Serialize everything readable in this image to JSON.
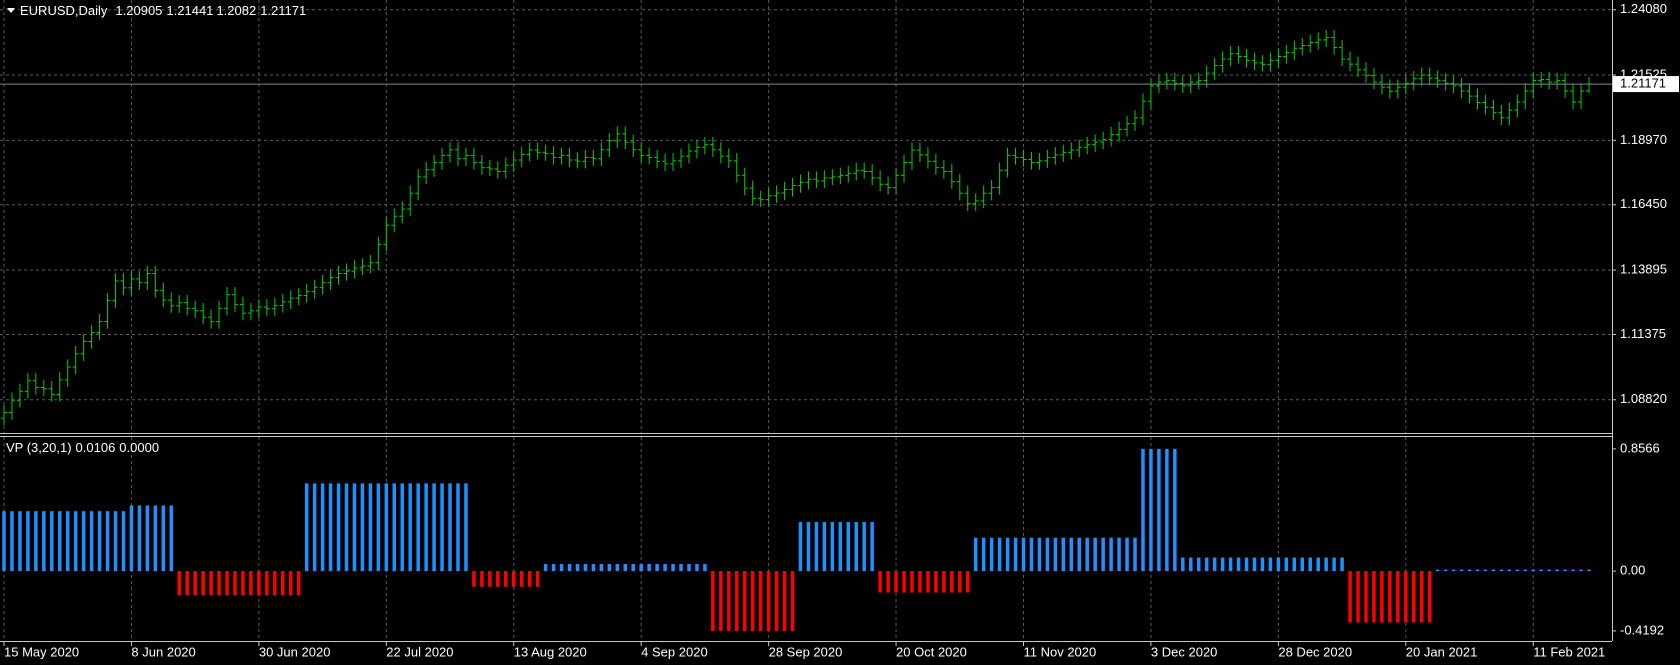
{
  "chart_data": [
    {
      "type": "ohlc",
      "title": "EURUSD,Daily",
      "color": "#00d000",
      "price_line_color": "#778899",
      "grid": true,
      "ylim": [
        1.0752,
        1.2446
      ],
      "yticks": [
        {
          "value": 1.2408,
          "label": "1.24080"
        },
        {
          "value": 1.21525,
          "label": "1.21525"
        },
        {
          "value": 1.1897,
          "label": "1.18970"
        },
        {
          "value": 1.1645,
          "label": "1.16450"
        },
        {
          "value": 1.13895,
          "label": "1.13895"
        },
        {
          "value": 1.11375,
          "label": "1.11375"
        },
        {
          "value": 1.0882,
          "label": "1.08820"
        }
      ],
      "open": [
        1.081,
        1.0832,
        1.088,
        1.0915,
        1.0957,
        1.093,
        1.0925,
        1.0903,
        1.096,
        1.101,
        1.1062,
        1.111,
        1.1145,
        1.1188,
        1.127,
        1.1347,
        1.132,
        1.1355,
        1.134,
        1.1376,
        1.131,
        1.1272,
        1.125,
        1.1262,
        1.124,
        1.123,
        1.1205,
        1.1188,
        1.124,
        1.1293,
        1.1255,
        1.1221,
        1.123,
        1.1245,
        1.1238,
        1.1251,
        1.1265,
        1.128,
        1.129,
        1.1305,
        1.1322,
        1.134,
        1.136,
        1.1376,
        1.1385,
        1.1398,
        1.1405,
        1.1418,
        1.149,
        1.1565,
        1.16,
        1.1628,
        1.169,
        1.1754,
        1.1782,
        1.181,
        1.1838,
        1.186,
        1.1825,
        1.1838,
        1.181,
        1.179,
        1.1785,
        1.1775,
        1.18,
        1.182,
        1.1842,
        1.1859,
        1.185,
        1.1845,
        1.183,
        1.1838,
        1.182,
        1.1815,
        1.183,
        1.1825,
        1.186,
        1.1895,
        1.1922,
        1.189,
        1.186,
        1.1838,
        1.183,
        1.1815,
        1.1805,
        1.1817,
        1.1835,
        1.1855,
        1.187,
        1.188,
        1.186,
        1.1835,
        1.1817,
        1.176,
        1.171,
        1.167,
        1.1665,
        1.168,
        1.1691,
        1.1705,
        1.172,
        1.1733,
        1.1745,
        1.1738,
        1.175,
        1.1754,
        1.176,
        1.1768,
        1.178,
        1.1775,
        1.175,
        1.1725,
        1.1712,
        1.176,
        1.181,
        1.1859,
        1.184,
        1.1815,
        1.179,
        1.1775,
        1.1735,
        1.169,
        1.1649,
        1.166,
        1.169,
        1.1712,
        1.178,
        1.1838,
        1.183,
        1.1822,
        1.181,
        1.1817,
        1.183,
        1.184,
        1.185,
        1.1859,
        1.187,
        1.188,
        1.189,
        1.1901,
        1.192,
        1.194,
        1.1962,
        1.1985,
        1.205,
        1.211,
        1.2125,
        1.2131,
        1.212,
        1.211,
        1.2125,
        1.2131,
        1.216,
        1.219,
        1.2215,
        1.2236,
        1.2225,
        1.221,
        1.22,
        1.2194,
        1.221,
        1.2225,
        1.224,
        1.2257,
        1.2268,
        1.228,
        1.229,
        1.2299,
        1.226,
        1.2215,
        1.2195,
        1.2173,
        1.215,
        1.2125,
        1.2105,
        1.2089,
        1.2105,
        1.212,
        1.2138,
        1.2152,
        1.214,
        1.213,
        1.212,
        1.211,
        1.209,
        1.207,
        1.2045,
        1.2026,
        1.2005,
        1.1985,
        1.2015,
        1.2047,
        1.209,
        1.2131,
        1.2135,
        1.2125,
        1.2131,
        1.209,
        1.2047,
        1.20905
      ],
      "high": [
        1.0862,
        1.091,
        1.0945,
        1.0987,
        1.0987,
        1.096,
        1.0955,
        1.099,
        1.104,
        1.1092,
        1.114,
        1.1175,
        1.1218,
        1.13,
        1.1377,
        1.1377,
        1.1385,
        1.1385,
        1.1406,
        1.1406,
        1.134,
        1.1302,
        1.1292,
        1.1292,
        1.127,
        1.126,
        1.1235,
        1.127,
        1.1323,
        1.1323,
        1.1285,
        1.126,
        1.1275,
        1.1275,
        1.1281,
        1.1295,
        1.131,
        1.132,
        1.1335,
        1.1352,
        1.137,
        1.139,
        1.1406,
        1.1415,
        1.1428,
        1.1435,
        1.1448,
        1.152,
        1.1595,
        1.163,
        1.1658,
        1.172,
        1.1784,
        1.1812,
        1.184,
        1.1868,
        1.189,
        1.189,
        1.1868,
        1.1868,
        1.184,
        1.182,
        1.1815,
        1.183,
        1.185,
        1.1872,
        1.1889,
        1.1889,
        1.188,
        1.1875,
        1.1868,
        1.1868,
        1.185,
        1.186,
        1.186,
        1.189,
        1.1925,
        1.1952,
        1.1952,
        1.192,
        1.189,
        1.1868,
        1.186,
        1.1845,
        1.1847,
        1.1865,
        1.1885,
        1.19,
        1.191,
        1.191,
        1.189,
        1.1865,
        1.1847,
        1.179,
        1.174,
        1.17,
        1.171,
        1.1721,
        1.1735,
        1.175,
        1.1763,
        1.1775,
        1.1775,
        1.178,
        1.1784,
        1.179,
        1.1798,
        1.181,
        1.181,
        1.1805,
        1.178,
        1.1755,
        1.179,
        1.184,
        1.1889,
        1.1889,
        1.187,
        1.1845,
        1.182,
        1.1805,
        1.1765,
        1.172,
        1.169,
        1.172,
        1.1742,
        1.181,
        1.1868,
        1.1868,
        1.186,
        1.1852,
        1.1847,
        1.186,
        1.187,
        1.188,
        1.1889,
        1.19,
        1.191,
        1.192,
        1.1931,
        1.195,
        1.197,
        1.1992,
        1.2015,
        1.208,
        1.214,
        1.2155,
        1.2161,
        1.2161,
        1.215,
        1.2155,
        1.2161,
        1.219,
        1.222,
        1.2245,
        1.2266,
        1.2266,
        1.2255,
        1.224,
        1.223,
        1.224,
        1.2255,
        1.227,
        1.2287,
        1.2298,
        1.231,
        1.232,
        1.2329,
        1.2329,
        1.229,
        1.2245,
        1.2225,
        1.2203,
        1.218,
        1.2155,
        1.2135,
        1.2135,
        1.215,
        1.2168,
        1.2182,
        1.2182,
        1.217,
        1.216,
        1.215,
        1.214,
        1.212,
        1.21,
        1.2075,
        1.2056,
        1.2035,
        1.2045,
        1.2077,
        1.212,
        1.2161,
        1.2165,
        1.2165,
        1.2161,
        1.2161,
        1.212,
        1.212,
        1.21441
      ],
      "low": [
        1.0782,
        1.0804,
        1.0852,
        1.0887,
        1.0902,
        1.0897,
        1.0875,
        1.0875,
        1.0932,
        1.0982,
        1.1034,
        1.1082,
        1.1117,
        1.116,
        1.1242,
        1.1292,
        1.1292,
        1.1312,
        1.1312,
        1.1282,
        1.1244,
        1.1222,
        1.1222,
        1.1212,
        1.1202,
        1.1177,
        1.116,
        1.116,
        1.1212,
        1.1227,
        1.1193,
        1.1193,
        1.1202,
        1.121,
        1.121,
        1.1223,
        1.1237,
        1.1252,
        1.1262,
        1.1277,
        1.1294,
        1.1312,
        1.1332,
        1.1348,
        1.1357,
        1.137,
        1.1377,
        1.139,
        1.1462,
        1.1537,
        1.1572,
        1.16,
        1.1662,
        1.1726,
        1.1754,
        1.1782,
        1.181,
        1.1797,
        1.1797,
        1.1782,
        1.1762,
        1.1757,
        1.1747,
        1.1747,
        1.1772,
        1.1792,
        1.1814,
        1.1822,
        1.1817,
        1.1802,
        1.1802,
        1.1792,
        1.1787,
        1.1787,
        1.1797,
        1.1797,
        1.1832,
        1.1867,
        1.1862,
        1.1832,
        1.181,
        1.1802,
        1.1787,
        1.1777,
        1.1777,
        1.1789,
        1.1807,
        1.1827,
        1.1842,
        1.1832,
        1.1807,
        1.1789,
        1.1732,
        1.1682,
        1.1642,
        1.1637,
        1.1637,
        1.1652,
        1.1663,
        1.1677,
        1.1692,
        1.1705,
        1.171,
        1.171,
        1.1722,
        1.1726,
        1.1732,
        1.174,
        1.1747,
        1.1722,
        1.1697,
        1.1684,
        1.1684,
        1.1732,
        1.1782,
        1.1812,
        1.1787,
        1.1762,
        1.1747,
        1.1707,
        1.1662,
        1.1621,
        1.1621,
        1.1632,
        1.1662,
        1.1684,
        1.1752,
        1.1802,
        1.1794,
        1.1782,
        1.1782,
        1.1789,
        1.1802,
        1.1812,
        1.1822,
        1.1831,
        1.1842,
        1.1852,
        1.1862,
        1.1873,
        1.1892,
        1.1912,
        1.1934,
        1.1957,
        1.2022,
        1.2082,
        1.2097,
        1.2092,
        1.2082,
        1.2082,
        1.2097,
        1.2103,
        1.2132,
        1.2162,
        1.2187,
        1.2197,
        1.2182,
        1.2172,
        1.2166,
        1.2166,
        1.2182,
        1.2197,
        1.2212,
        1.2229,
        1.224,
        1.2252,
        1.2262,
        1.2232,
        1.2187,
        1.2167,
        1.2145,
        1.2122,
        1.2097,
        1.2077,
        1.2061,
        1.2061,
        1.2077,
        1.2092,
        1.211,
        1.2112,
        1.2102,
        1.2092,
        1.2082,
        1.2062,
        1.2042,
        1.2017,
        1.1998,
        1.1977,
        1.1957,
        1.1957,
        1.1987,
        1.2019,
        1.2062,
        1.2103,
        1.2097,
        1.2097,
        1.2062,
        1.2019,
        1.2019,
        1.2082
      ],
      "close": [
        1.0832,
        1.088,
        1.0915,
        1.0957,
        1.093,
        1.0925,
        1.0903,
        1.096,
        1.101,
        1.1062,
        1.111,
        1.1145,
        1.1188,
        1.127,
        1.1347,
        1.132,
        1.1355,
        1.134,
        1.1376,
        1.131,
        1.1272,
        1.125,
        1.1262,
        1.124,
        1.123,
        1.1205,
        1.1188,
        1.124,
        1.1293,
        1.1255,
        1.1221,
        1.123,
        1.1245,
        1.1238,
        1.1251,
        1.1265,
        1.128,
        1.129,
        1.1305,
        1.1322,
        1.134,
        1.136,
        1.1376,
        1.1385,
        1.1398,
        1.1405,
        1.1418,
        1.149,
        1.1565,
        1.16,
        1.1628,
        1.169,
        1.1754,
        1.1782,
        1.181,
        1.1838,
        1.186,
        1.1825,
        1.1838,
        1.181,
        1.179,
        1.1785,
        1.1775,
        1.18,
        1.182,
        1.1842,
        1.1859,
        1.185,
        1.1845,
        1.183,
        1.1838,
        1.182,
        1.1815,
        1.183,
        1.1825,
        1.186,
        1.1895,
        1.1922,
        1.189,
        1.186,
        1.1838,
        1.183,
        1.1815,
        1.1805,
        1.1817,
        1.1835,
        1.1855,
        1.187,
        1.188,
        1.186,
        1.1835,
        1.1817,
        1.176,
        1.171,
        1.167,
        1.1665,
        1.168,
        1.1691,
        1.1705,
        1.172,
        1.1733,
        1.1745,
        1.1738,
        1.175,
        1.1754,
        1.176,
        1.1768,
        1.178,
        1.1775,
        1.175,
        1.1725,
        1.1712,
        1.176,
        1.181,
        1.1859,
        1.184,
        1.1815,
        1.179,
        1.1775,
        1.1735,
        1.169,
        1.1649,
        1.166,
        1.169,
        1.1712,
        1.178,
        1.1838,
        1.183,
        1.1822,
        1.181,
        1.1817,
        1.183,
        1.184,
        1.185,
        1.1859,
        1.187,
        1.188,
        1.189,
        1.1901,
        1.192,
        1.194,
        1.1962,
        1.1985,
        1.205,
        1.211,
        1.2125,
        1.2131,
        1.212,
        1.211,
        1.2125,
        1.2131,
        1.216,
        1.219,
        1.2215,
        1.2236,
        1.2225,
        1.221,
        1.22,
        1.2194,
        1.221,
        1.2225,
        1.224,
        1.2257,
        1.2268,
        1.228,
        1.229,
        1.2299,
        1.226,
        1.2215,
        1.2195,
        1.2173,
        1.215,
        1.2125,
        1.2105,
        1.2089,
        1.2105,
        1.212,
        1.2138,
        1.2152,
        1.214,
        1.213,
        1.212,
        1.211,
        1.209,
        1.207,
        1.2045,
        1.2026,
        1.2005,
        1.1985,
        1.2015,
        1.2047,
        1.209,
        1.2131,
        1.2135,
        1.2125,
        1.2131,
        1.209,
        1.2047,
        1.209,
        1.21171
      ]
    },
    {
      "type": "histogram",
      "title": "VP (3,20,1)",
      "up_color": "#1e90ff",
      "down_color": "#ff0000",
      "grid": true,
      "ylim": [
        -0.49,
        0.94
      ],
      "yticks": [
        0.8566,
        {
          "value": 0,
          "label": "0.00"
        },
        -0.4192
      ],
      "buffer_values": [
        {
          "value": 0,
          "label": "0.0000"
        }
      ],
      "categories": [
        "15 May 2020",
        null,
        null,
        null,
        null,
        null,
        null,
        null,
        null,
        null,
        null,
        null,
        null,
        null,
        null,
        null,
        "8 Jun 2020",
        null,
        null,
        null,
        null,
        null,
        null,
        null,
        null,
        null,
        null,
        null,
        null,
        null,
        null,
        null,
        "30 Jun 2020",
        null,
        null,
        null,
        null,
        null,
        null,
        null,
        null,
        null,
        null,
        null,
        null,
        null,
        null,
        null,
        "22 Jul 2020",
        null,
        null,
        null,
        null,
        null,
        null,
        null,
        null,
        null,
        null,
        null,
        null,
        null,
        null,
        null,
        "13 Aug 2020",
        null,
        null,
        null,
        null,
        null,
        null,
        null,
        null,
        null,
        null,
        null,
        null,
        null,
        null,
        null,
        "4 Sep 2020",
        null,
        null,
        null,
        null,
        null,
        null,
        null,
        null,
        null,
        null,
        null,
        null,
        null,
        null,
        null,
        "28 Sep 2020",
        null,
        null,
        null,
        null,
        null,
        null,
        null,
        null,
        null,
        null,
        null,
        null,
        null,
        null,
        null,
        "20 Oct 2020",
        null,
        null,
        null,
        null,
        null,
        null,
        null,
        null,
        null,
        null,
        null,
        null,
        null,
        null,
        null,
        "11 Nov 2020",
        null,
        null,
        null,
        null,
        null,
        null,
        null,
        null,
        null,
        null,
        null,
        null,
        null,
        null,
        null,
        "3 Dec 2020",
        null,
        null,
        null,
        null,
        null,
        null,
        null,
        null,
        null,
        null,
        null,
        null,
        null,
        null,
        null,
        "28 Dec 2020",
        null,
        null,
        null,
        null,
        null,
        null,
        null,
        null,
        null,
        null,
        null,
        null,
        null,
        null,
        null,
        "20 Jan 2021",
        null,
        null,
        null,
        null,
        null,
        null,
        null,
        null,
        null,
        null,
        null,
        null,
        null,
        null,
        null,
        "11 Feb 2021",
        null,
        null,
        null,
        null,
        null,
        null,
        null
      ],
      "values": [
        0.42,
        0.42,
        0.42,
        0.42,
        0.42,
        0.42,
        0.42,
        0.42,
        0.42,
        0.42,
        0.42,
        0.42,
        0.42,
        0.42,
        0.42,
        0.42,
        0.46,
        0.46,
        0.46,
        0.46,
        0.46,
        0.46,
        -0.17,
        -0.17,
        -0.17,
        -0.17,
        -0.17,
        -0.17,
        -0.17,
        -0.17,
        -0.17,
        -0.17,
        -0.17,
        -0.17,
        -0.17,
        -0.17,
        -0.17,
        -0.17,
        0.615,
        0.615,
        0.615,
        0.615,
        0.615,
        0.615,
        0.615,
        0.615,
        0.615,
        0.615,
        0.615,
        0.615,
        0.615,
        0.615,
        0.615,
        0.615,
        0.615,
        0.615,
        0.615,
        0.615,
        0.615,
        -0.11,
        -0.11,
        -0.11,
        -0.11,
        -0.11,
        -0.11,
        -0.11,
        -0.11,
        -0.11,
        0.05,
        0.05,
        0.05,
        0.05,
        0.05,
        0.05,
        0.05,
        0.05,
        0.05,
        0.05,
        0.05,
        0.05,
        0.05,
        0.05,
        0.05,
        0.05,
        0.05,
        0.05,
        0.05,
        0.05,
        0.05,
        -0.4192,
        -0.4192,
        -0.4192,
        -0.4192,
        -0.4192,
        -0.4192,
        -0.4192,
        -0.4192,
        -0.4192,
        -0.4192,
        -0.4192,
        0.344,
        0.344,
        0.344,
        0.344,
        0.344,
        0.344,
        0.344,
        0.344,
        0.344,
        0.344,
        -0.15,
        -0.15,
        -0.15,
        -0.15,
        -0.15,
        -0.15,
        -0.15,
        -0.15,
        -0.15,
        -0.15,
        -0.15,
        -0.15,
        0.234,
        0.234,
        0.234,
        0.234,
        0.234,
        0.234,
        0.234,
        0.234,
        0.234,
        0.234,
        0.234,
        0.234,
        0.234,
        0.234,
        0.234,
        0.234,
        0.234,
        0.234,
        0.234,
        0.234,
        0.234,
        0.8566,
        0.8566,
        0.8566,
        0.8566,
        0.8566,
        0.095,
        0.095,
        0.095,
        0.095,
        0.095,
        0.095,
        0.095,
        0.095,
        0.095,
        0.095,
        0.095,
        0.095,
        0.095,
        0.095,
        0.095,
        0.095,
        0.095,
        0.095,
        0.095,
        0.095,
        0.095,
        -0.36,
        -0.36,
        -0.36,
        -0.36,
        -0.36,
        -0.36,
        -0.36,
        -0.36,
        -0.36,
        -0.36,
        -0.36,
        0.0106,
        0.0106,
        0.0106,
        0.0106,
        0.0106,
        0.0106,
        0.0106,
        0.0106,
        0.0106,
        0.0106,
        0.0106,
        0.0106,
        0.0106,
        0.0106,
        0.0106,
        0.0106,
        0.0106,
        0.0106,
        0.0106,
        0.0106
      ]
    }
  ]
}
